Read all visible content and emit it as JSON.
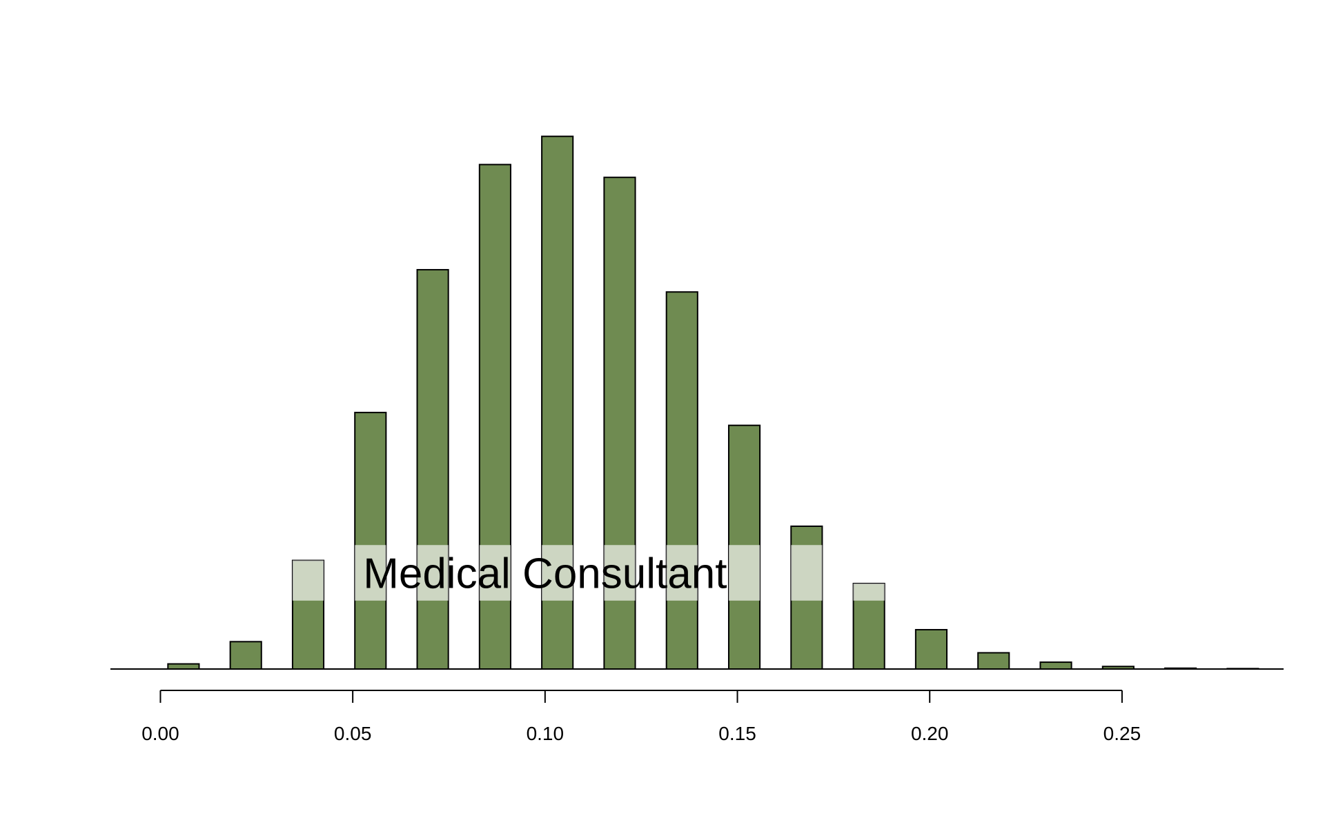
{
  "chart_data": {
    "type": "bar",
    "title": "",
    "xlabel": "",
    "ylabel": "",
    "xlim": [
      -0.013,
      0.292
    ],
    "bin_width": 0.0162,
    "x": [
      0.006,
      0.0222,
      0.0384,
      0.0546,
      0.0708,
      0.087,
      0.1032,
      0.1194,
      0.1356,
      0.1518,
      0.168,
      0.1842,
      0.2004,
      0.2166,
      0.2328,
      0.249,
      0.2652,
      0.2814
    ],
    "values": [
      0.006,
      0.032,
      0.127,
      0.3,
      0.467,
      0.59,
      0.623,
      0.575,
      0.441,
      0.285,
      0.167,
      0.1,
      0.046,
      0.019,
      0.008,
      0.003,
      0.001,
      0.0005
    ],
    "ylim": [
      0,
      0.68
    ],
    "x_ticks": [
      0.0,
      0.05,
      0.1,
      0.15,
      0.2,
      0.25
    ],
    "x_tick_labels": [
      "0.00",
      "0.05",
      "0.10",
      "0.15",
      "0.20",
      "0.25"
    ],
    "grid": false,
    "legend": "none",
    "bar_color": "#6f8b51",
    "annotation": {
      "text": "Medical Consultant",
      "x": 0.1,
      "box_y_range": [
        0.08,
        0.145
      ],
      "box_color": "#ffffff",
      "box_opacity": 0.65
    }
  }
}
